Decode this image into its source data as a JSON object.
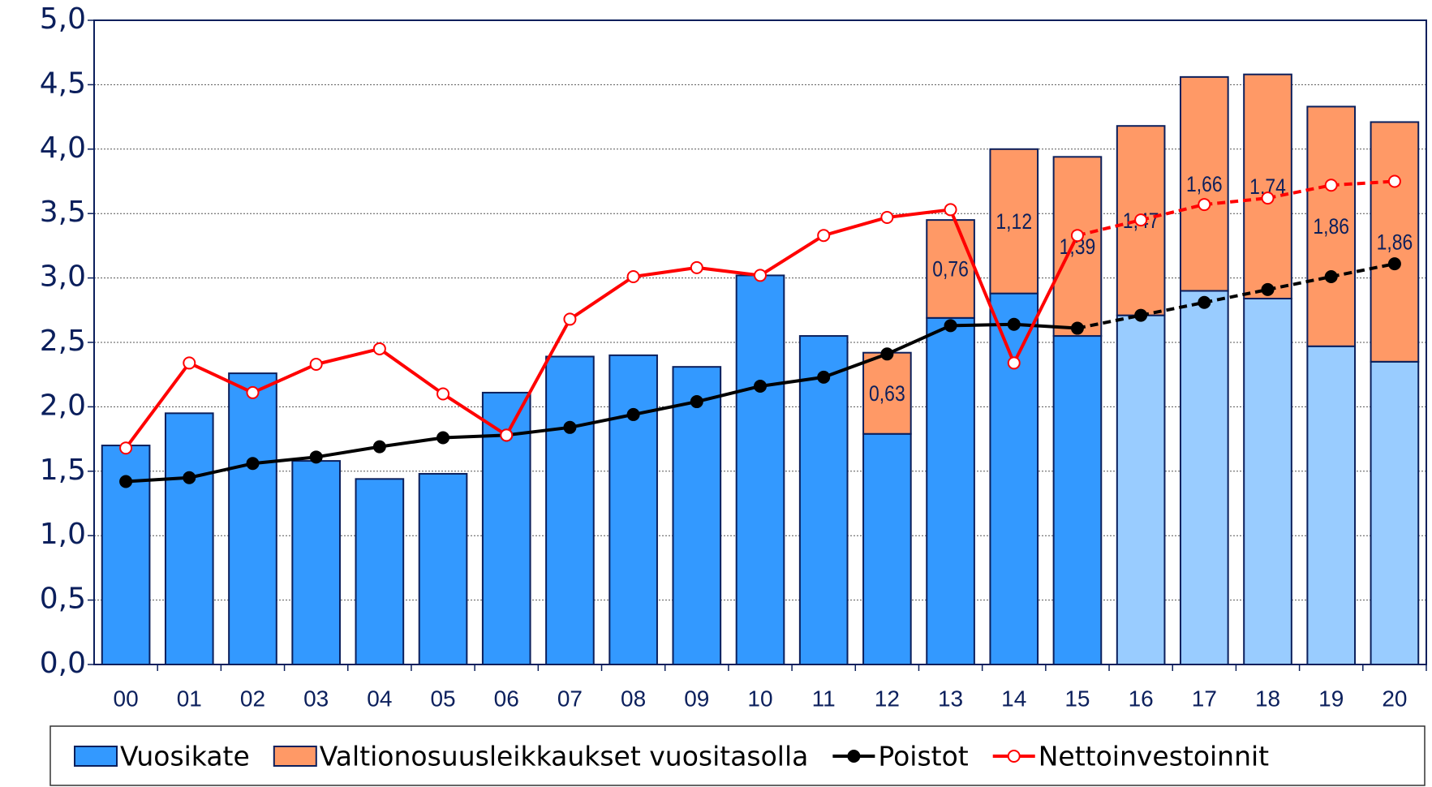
{
  "chart_data": {
    "type": "bar",
    "categories": [
      "00",
      "01",
      "02",
      "03",
      "04",
      "05",
      "06",
      "07",
      "08",
      "09",
      "10",
      "11",
      "12",
      "13",
      "14",
      "15",
      "16",
      "17",
      "18",
      "19",
      "20"
    ],
    "ylim": [
      0,
      5
    ],
    "yticks": [
      {
        "value": 0,
        "label": "0,0"
      },
      {
        "value": 0.5,
        "label": "0,5"
      },
      {
        "value": 1,
        "label": "1,0"
      },
      {
        "value": 1.5,
        "label": "1,5"
      },
      {
        "value": 2,
        "label": "2,0"
      },
      {
        "value": 2.5,
        "label": "2,5"
      },
      {
        "value": 3,
        "label": "3,0"
      },
      {
        "value": 3.5,
        "label": "3,5"
      },
      {
        "value": 4,
        "label": "4,0"
      },
      {
        "value": 4.5,
        "label": "4,5"
      },
      {
        "value": 5,
        "label": "5,0"
      }
    ],
    "grid": true,
    "legend": "bottom",
    "series": [
      {
        "name": "Vuosikate",
        "type": "bar",
        "color": "#3399ff",
        "colors": [
          "#3399ff",
          "#3399ff",
          "#3399ff",
          "#3399ff",
          "#3399ff",
          "#3399ff",
          "#3399ff",
          "#3399ff",
          "#3399ff",
          "#3399ff",
          "#3399ff",
          "#3399ff",
          "#3399ff",
          "#3399ff",
          "#3399ff",
          "#3399ff",
          "#99ccff",
          "#99ccff",
          "#99ccff",
          "#99ccff",
          "#99ccff"
        ],
        "values": [
          1.7,
          1.95,
          2.26,
          1.58,
          1.44,
          1.48,
          2.11,
          2.39,
          2.4,
          2.31,
          3.02,
          2.55,
          1.79,
          2.69,
          2.88,
          2.55,
          2.71,
          2.9,
          2.84,
          2.47,
          2.35
        ]
      },
      {
        "name": "Valtionosuusleikkaukset vuositasolla",
        "type": "bar",
        "stacked": true,
        "color": "#ff9966",
        "values": [
          null,
          null,
          null,
          null,
          null,
          null,
          null,
          null,
          null,
          null,
          null,
          null,
          0.63,
          0.76,
          1.12,
          1.39,
          1.47,
          1.66,
          1.74,
          1.86,
          1.86
        ],
        "value_labels": [
          null,
          null,
          null,
          null,
          null,
          null,
          null,
          null,
          null,
          null,
          null,
          null,
          "0,63",
          "0,76",
          "1,12",
          "1,39",
          "1,47",
          "1,66",
          "1,74",
          "1,86",
          "1,86"
        ]
      },
      {
        "name": "Poistot",
        "type": "line",
        "color": "#000000",
        "marker_fill": "#000000",
        "dash_from": "15",
        "values": [
          1.42,
          1.45,
          1.56,
          1.61,
          1.69,
          1.76,
          1.78,
          1.84,
          1.94,
          2.04,
          2.16,
          2.23,
          2.41,
          2.63,
          2.64,
          2.61,
          2.71,
          2.81,
          2.91,
          3.01,
          3.11
        ]
      },
      {
        "name": "Nettoinvestoinnit",
        "type": "line",
        "color": "#ff0000",
        "marker_fill": "#ffffff",
        "dash_from": "15",
        "values": [
          1.68,
          2.34,
          2.11,
          2.33,
          2.45,
          2.1,
          1.78,
          2.68,
          3.01,
          3.08,
          3.02,
          3.33,
          3.47,
          3.53,
          2.34,
          3.33,
          3.45,
          3.57,
          3.62,
          3.72,
          3.75
        ]
      }
    ]
  }
}
